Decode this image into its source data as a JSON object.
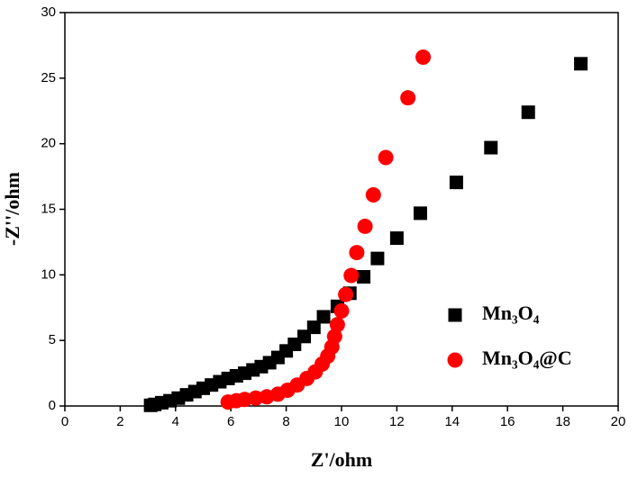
{
  "chart_data": {
    "type": "scatter",
    "xlabel": "Z'/ohm",
    "ylabel": "-Z''/ohm",
    "xlim": [
      0,
      20
    ],
    "xticks": [
      0,
      2,
      4,
      6,
      8,
      10,
      12,
      14,
      16,
      18,
      20
    ],
    "ylim": [
      0,
      30
    ],
    "yticks": [
      0,
      5,
      10,
      15,
      20,
      25,
      30
    ],
    "legend": "right",
    "series": [
      {
        "name": "Mn₃O₄",
        "color": "#000000",
        "marker": "square",
        "x": [
          18.65,
          16.75,
          15.4,
          14.15,
          12.85,
          12.0,
          11.3,
          10.8,
          10.3,
          9.85,
          9.35,
          9.0,
          8.65,
          8.3,
          8.0,
          7.7,
          7.4,
          7.1,
          6.8,
          6.5,
          6.2,
          5.9,
          5.6,
          5.3,
          5.0,
          4.7,
          4.4,
          4.1,
          3.8,
          3.5,
          3.25,
          3.1
        ],
        "values": [
          26.1,
          22.4,
          19.7,
          17.05,
          14.7,
          12.8,
          11.25,
          9.85,
          8.6,
          7.6,
          6.8,
          6.0,
          5.3,
          4.7,
          4.2,
          3.7,
          3.3,
          3.0,
          2.75,
          2.5,
          2.3,
          2.1,
          1.85,
          1.6,
          1.35,
          1.1,
          0.85,
          0.6,
          0.4,
          0.25,
          0.12,
          0.05
        ]
      },
      {
        "name": "Mn₃O₄@C",
        "color": "#ff0000",
        "marker": "circle",
        "x": [
          12.95,
          12.4,
          11.6,
          11.15,
          10.85,
          10.55,
          10.35,
          10.15,
          10.0,
          9.85,
          9.75,
          9.65,
          9.5,
          9.3,
          9.05,
          8.75,
          8.4,
          8.05,
          7.7,
          7.3,
          6.9,
          6.5,
          6.2,
          5.9
        ],
        "values": [
          26.6,
          23.5,
          18.95,
          16.1,
          13.7,
          11.7,
          9.95,
          8.5,
          7.25,
          6.2,
          5.3,
          4.5,
          3.8,
          3.2,
          2.6,
          2.1,
          1.6,
          1.2,
          0.9,
          0.7,
          0.6,
          0.5,
          0.4,
          0.3
        ]
      }
    ]
  }
}
